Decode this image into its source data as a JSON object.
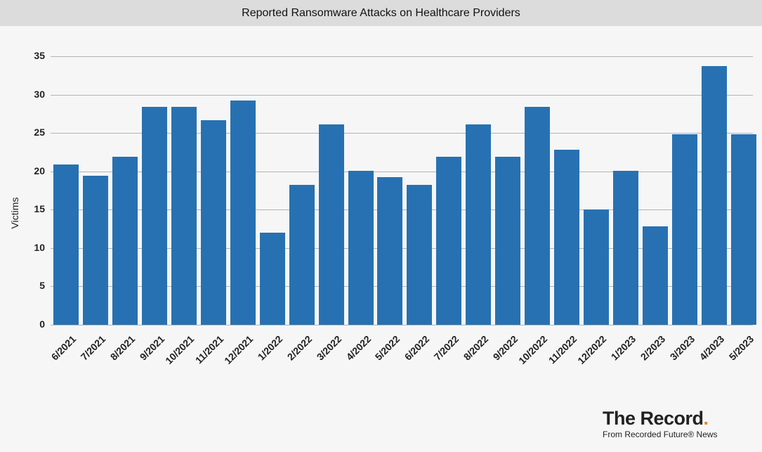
{
  "header": {
    "title": "Reported Ransomware Attacks on Healthcare Providers"
  },
  "brand": {
    "name": "The Record",
    "dot": ".",
    "sub": "From Recorded Future® News",
    "dot_color": "#e8892c"
  },
  "colors": {
    "bar": "#2771b2",
    "grid": "#b4b4b4",
    "title_bg": "#dcdcdc",
    "bg": "#f6f6f6"
  },
  "chart_data": {
    "type": "bar",
    "title": "Reported Ransomware Attacks on Healthcare Providers",
    "xlabel": "",
    "ylabel": "Victims",
    "ylim": [
      0,
      35
    ],
    "yticks": [
      0,
      5,
      10,
      15,
      20,
      25,
      30,
      35
    ],
    "grid": true,
    "legend": null,
    "categories": [
      "6/2021",
      "7/2021",
      "8/2021",
      "9/2021",
      "10/2021",
      "11/2021",
      "12/2021",
      "1/2022",
      "2/2022",
      "3/2022",
      "4/2022",
      "5/2022",
      "6/2022",
      "7/2022",
      "8/2022",
      "9/2022",
      "10/2022",
      "11/2022",
      "12/2022",
      "1/2023",
      "2/2023",
      "3/2023",
      "4/2023",
      "5/2023"
    ],
    "values": [
      20.9,
      19.4,
      21.9,
      28.4,
      28.4,
      26.7,
      29.2,
      12.0,
      18.2,
      26.1,
      20.1,
      19.2,
      18.2,
      21.9,
      26.1,
      21.9,
      28.4,
      22.8,
      15.0,
      20.1,
      12.8,
      24.8,
      33.7,
      24.8
    ]
  }
}
